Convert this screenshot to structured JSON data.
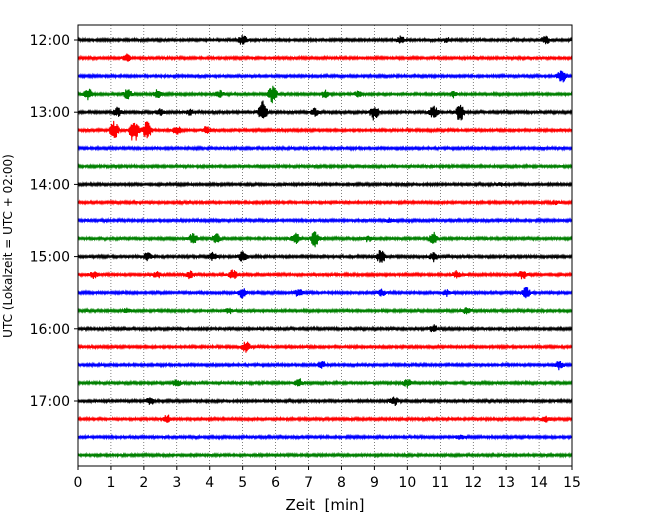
{
  "chart_data": {
    "type": "line",
    "xlabel": "Zeit  [min]",
    "ylabel": "UTC (Lokalzeit = UTC + 02:00)",
    "xlim": [
      0,
      15
    ],
    "x_ticks": [
      "0",
      "1",
      "2",
      "3",
      "4",
      "5",
      "6",
      "7",
      "8",
      "9",
      "10",
      "11",
      "12",
      "13",
      "14",
      "15"
    ],
    "y_ticks": [
      "12:00",
      "13:00",
      "14:00",
      "15:00",
      "16:00",
      "17:00"
    ],
    "grid": "vertical dotted",
    "trace_interval_min": 15,
    "trace_colors": [
      "#000000",
      "#ff0000",
      "#0000ff",
      "#008000"
    ],
    "traces": [
      {
        "start": "12:00",
        "color": "#000000",
        "events": [
          [
            5.0,
            1.0
          ],
          [
            9.8,
            0.8
          ],
          [
            14.2,
            0.9
          ],
          [
            11.2,
            0.5
          ]
        ]
      },
      {
        "start": "12:15",
        "color": "#ff0000",
        "events": [
          [
            1.5,
            0.8
          ]
        ]
      },
      {
        "start": "12:30",
        "color": "#0000ff",
        "events": [
          [
            14.7,
            1.6
          ]
        ]
      },
      {
        "start": "12:45",
        "color": "#008000",
        "events": [
          [
            0.3,
            1.2
          ],
          [
            1.5,
            1.0
          ],
          [
            2.4,
            0.9
          ],
          [
            4.3,
            0.8
          ],
          [
            5.9,
            1.8
          ],
          [
            7.5,
            0.8
          ],
          [
            8.5,
            0.6
          ],
          [
            11.4,
            0.7
          ]
        ]
      },
      {
        "start": "13:00",
        "color": "#000000",
        "events": [
          [
            1.2,
            1.0
          ],
          [
            2.5,
            0.7
          ],
          [
            3.4,
            0.6
          ],
          [
            5.6,
            2.4
          ],
          [
            7.2,
            0.8
          ],
          [
            9.0,
            1.8
          ],
          [
            10.8,
            1.5
          ],
          [
            11.6,
            1.9
          ]
        ]
      },
      {
        "start": "13:15",
        "color": "#ff0000",
        "events": [
          [
            1.1,
            2.0
          ],
          [
            1.7,
            2.8
          ],
          [
            2.1,
            2.0
          ],
          [
            3.0,
            1.0
          ],
          [
            3.9,
            0.8
          ]
        ]
      },
      {
        "start": "13:30",
        "color": "#0000ff",
        "events": []
      },
      {
        "start": "13:45",
        "color": "#008000",
        "events": []
      },
      {
        "start": "14:00",
        "color": "#000000",
        "events": [
          [
            12.8,
            0.4
          ]
        ]
      },
      {
        "start": "14:15",
        "color": "#ff0000",
        "events": [
          [
            14.5,
            0.4
          ]
        ]
      },
      {
        "start": "14:30",
        "color": "#0000ff",
        "events": [
          [
            9.5,
            0.5
          ]
        ]
      },
      {
        "start": "14:45",
        "color": "#008000",
        "events": [
          [
            3.5,
            1.2
          ],
          [
            4.2,
            1.0
          ],
          [
            6.6,
            1.2
          ],
          [
            7.2,
            1.8
          ],
          [
            8.8,
            0.7
          ],
          [
            10.8,
            1.4
          ]
        ]
      },
      {
        "start": "15:00",
        "color": "#000000",
        "events": [
          [
            2.1,
            0.9
          ],
          [
            4.1,
            0.9
          ],
          [
            5.0,
            1.0
          ],
          [
            9.2,
            1.5
          ],
          [
            10.8,
            1.0
          ]
        ]
      },
      {
        "start": "15:15",
        "color": "#ff0000",
        "events": [
          [
            0.5,
            0.8
          ],
          [
            2.4,
            0.8
          ],
          [
            3.4,
            0.8
          ],
          [
            4.7,
            1.0
          ],
          [
            11.5,
            0.8
          ],
          [
            13.5,
            1.0
          ]
        ]
      },
      {
        "start": "15:30",
        "color": "#0000ff",
        "events": [
          [
            5.0,
            1.2
          ],
          [
            6.7,
            0.8
          ],
          [
            9.2,
            0.7
          ],
          [
            11.2,
            0.7
          ],
          [
            13.6,
            1.2
          ]
        ]
      },
      {
        "start": "15:45",
        "color": "#008000",
        "events": [
          [
            1.5,
            0.6
          ],
          [
            4.6,
            0.6
          ],
          [
            11.8,
            0.7
          ]
        ]
      },
      {
        "start": "16:00",
        "color": "#000000",
        "events": [
          [
            10.8,
            0.8
          ]
        ]
      },
      {
        "start": "16:15",
        "color": "#ff0000",
        "events": [
          [
            5.1,
            1.1
          ]
        ]
      },
      {
        "start": "16:30",
        "color": "#0000ff",
        "events": [
          [
            7.4,
            0.8
          ],
          [
            14.6,
            1.0
          ]
        ]
      },
      {
        "start": "16:45",
        "color": "#008000",
        "events": [
          [
            3.0,
            0.8
          ],
          [
            6.7,
            1.0
          ],
          [
            10.0,
            0.9
          ]
        ]
      },
      {
        "start": "17:00",
        "color": "#000000",
        "events": [
          [
            2.2,
            0.9
          ],
          [
            9.6,
            1.0
          ]
        ]
      },
      {
        "start": "17:15",
        "color": "#ff0000",
        "events": [
          [
            2.7,
            0.9
          ],
          [
            14.2,
            0.6
          ]
        ]
      },
      {
        "start": "17:30",
        "color": "#0000ff",
        "events": [
          [
            11.6,
            0.5
          ]
        ]
      },
      {
        "start": "17:45",
        "color": "#008000",
        "events": []
      }
    ]
  }
}
